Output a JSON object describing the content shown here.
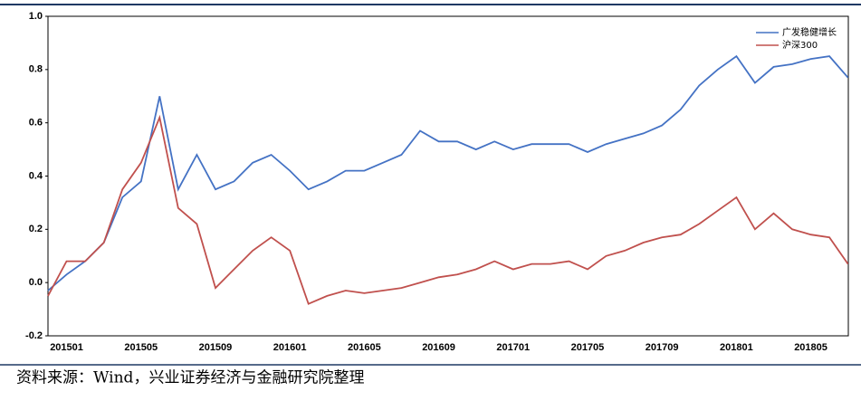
{
  "chart_data": {
    "type": "line",
    "categories": [
      null,
      "201501",
      null,
      null,
      null,
      "201505",
      null,
      null,
      null,
      "201509",
      null,
      null,
      null,
      "201601",
      null,
      null,
      null,
      "201605",
      null,
      null,
      null,
      "201609",
      null,
      null,
      null,
      "201701",
      null,
      null,
      null,
      "201705",
      null,
      null,
      null,
      "201709",
      null,
      null,
      null,
      "201801",
      null,
      null,
      null,
      "201805",
      null,
      null
    ],
    "series": [
      {
        "name": "广发稳健增长",
        "color": "#4472c4",
        "values": [
          -0.03,
          0.03,
          0.08,
          0.15,
          0.32,
          0.38,
          0.7,
          0.35,
          0.48,
          0.35,
          0.38,
          0.45,
          0.48,
          0.42,
          0.35,
          0.38,
          0.42,
          0.42,
          0.45,
          0.48,
          0.57,
          0.53,
          0.53,
          0.5,
          0.53,
          0.5,
          0.52,
          0.52,
          0.52,
          0.49,
          0.52,
          0.54,
          0.56,
          0.59,
          0.65,
          0.74,
          0.8,
          0.85,
          0.75,
          0.81,
          0.82,
          0.84,
          0.85,
          0.77
        ]
      },
      {
        "name": "沪深300",
        "color": "#c0504d",
        "values": [
          -0.05,
          0.08,
          0.08,
          0.15,
          0.35,
          0.45,
          0.62,
          0.28,
          0.22,
          -0.02,
          0.05,
          0.12,
          0.17,
          0.12,
          -0.08,
          -0.05,
          -0.03,
          -0.04,
          -0.03,
          -0.02,
          0.0,
          0.02,
          0.03,
          0.05,
          0.08,
          0.05,
          0.07,
          0.07,
          0.08,
          0.05,
          0.1,
          0.12,
          0.15,
          0.17,
          0.18,
          0.22,
          0.27,
          0.32,
          0.2,
          0.26,
          0.2,
          0.18,
          0.17,
          0.07
        ]
      }
    ],
    "ylim": [
      -0.2,
      1.0
    ],
    "yticks": [
      -0.2,
      {
        "value": 0.0,
        "label": "0.0"
      },
      0.2,
      0.4,
      0.6,
      0.8,
      {
        "value": 1.0,
        "label": "1.0"
      }
    ],
    "legend": "upper right",
    "source": "资料来源：Wind，兴业证券经济与金融研究院整理"
  }
}
